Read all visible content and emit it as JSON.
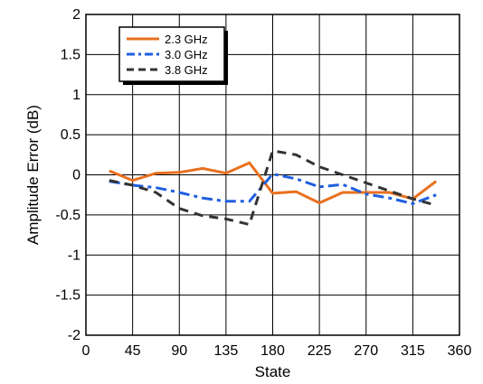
{
  "chart_data": {
    "type": "line",
    "title": "",
    "xlabel": "State",
    "ylabel": "Amplitude Error (dB)",
    "xlim": [
      0,
      360
    ],
    "ylim": [
      -2,
      2
    ],
    "xticks": [
      0,
      45,
      90,
      135,
      180,
      225,
      270,
      315,
      360
    ],
    "yticks": [
      -2,
      -1.5,
      -1,
      -0.5,
      0,
      0.5,
      1,
      1.5,
      2
    ],
    "xtick_labels": [
      "0",
      "45",
      "90",
      "135",
      "180",
      "225",
      "270",
      "315",
      "360"
    ],
    "ytick_labels": [
      "-2",
      "-1.5",
      "-1",
      "-0.5",
      "0",
      "0.5",
      "1",
      "1.5",
      "2"
    ],
    "grid": true,
    "legend_position": "top-left",
    "series": [
      {
        "name": "2.3 GHz",
        "color": "#e8701f",
        "dash": "solid",
        "x": [
          22.5,
          45,
          67.5,
          90,
          112.5,
          135,
          157.5,
          180,
          202.5,
          225,
          247.5,
          270,
          292.5,
          315,
          337.5
        ],
        "y": [
          0.05,
          -0.07,
          0.02,
          0.03,
          0.08,
          0.02,
          0.15,
          -0.23,
          -0.21,
          -0.35,
          -0.22,
          -0.22,
          -0.22,
          -0.3,
          -0.08
        ]
      },
      {
        "name": "3.0 GHz",
        "color": "#1f5fe0",
        "dash": "dashdot",
        "x": [
          22.5,
          45,
          67.5,
          90,
          112.5,
          135,
          157.5,
          180,
          202.5,
          225,
          247.5,
          270,
          292.5,
          315,
          337.5
        ],
        "y": [
          -0.08,
          -0.13,
          -0.16,
          -0.22,
          -0.29,
          -0.33,
          -0.33,
          0.01,
          -0.05,
          -0.15,
          -0.12,
          -0.24,
          -0.29,
          -0.36,
          -0.25
        ]
      },
      {
        "name": "3.8 GHz",
        "color": "#333333",
        "dash": "dashed",
        "x": [
          22.5,
          45,
          67.5,
          90,
          112.5,
          135,
          157.5,
          180,
          202.5,
          225,
          247.5,
          270,
          292.5,
          315,
          337.5
        ],
        "y": [
          -0.07,
          -0.13,
          -0.22,
          -0.42,
          -0.51,
          -0.55,
          -0.62,
          0.3,
          0.25,
          0.1,
          0.0,
          -0.1,
          -0.2,
          -0.3,
          -0.38
        ]
      }
    ]
  }
}
